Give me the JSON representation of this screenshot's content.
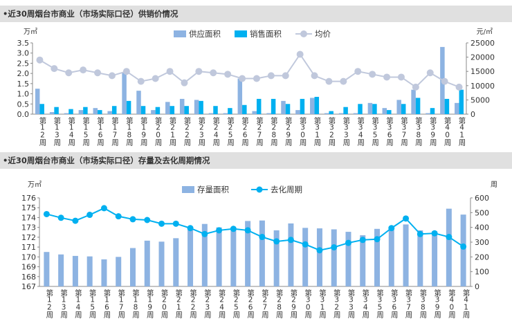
{
  "chart_data": [
    {
      "type": "bar",
      "title": "•近30周烟台市商业（市场实际口径）供销价情况",
      "y_unit_left": "万㎡",
      "y_unit_right": "元/㎡",
      "ylim": [
        0,
        3.5
      ],
      "yticks": [
        "0.0",
        "0.5",
        "1.0",
        "1.5",
        "2.0",
        "2.5",
        "3.0",
        "3.5"
      ],
      "y2lim": [
        0,
        25000
      ],
      "y2ticks": [
        "0",
        "5000",
        "10000",
        "15000",
        "20000",
        "25000"
      ],
      "legend_position": "top-center",
      "categories": [
        "第12周",
        "第13周",
        "第14周",
        "第15周",
        "第16周",
        "第17周",
        "第18周",
        "第19周",
        "第20周",
        "第21周",
        "第22周",
        "第23周",
        "第24周",
        "第25周",
        "第26周",
        "第27周",
        "第28周",
        "第29周",
        "第30周",
        "第31周",
        "第32周",
        "第33周",
        "第34周",
        "第35周",
        "第36周",
        "第37周",
        "第38周",
        "第39周",
        "第40周",
        "第41周"
      ],
      "series": [
        {
          "name": "供应面积",
          "kind": "bar",
          "color": "#8db3e2",
          "values": [
            1.25,
            0.1,
            0.05,
            0.2,
            0.3,
            0.15,
            2.05,
            1.15,
            0.2,
            0.6,
            0.75,
            0.7,
            0.05,
            0.05,
            1.75,
            0.15,
            0.05,
            0.65,
            0.2,
            0.8,
            0.05,
            0.05,
            0.05,
            0.55,
            0.3,
            0.7,
            1.2,
            0.05,
            3.3,
            0.55
          ]
        },
        {
          "name": "销售面积",
          "kind": "bar",
          "color": "#00b0f0",
          "values": [
            0.5,
            0.35,
            0.25,
            0.35,
            0.2,
            0.4,
            0.65,
            0.4,
            0.35,
            0.4,
            0.4,
            0.65,
            0.4,
            0.3,
            0.45,
            0.75,
            0.75,
            0.5,
            0.75,
            0.85,
            0.15,
            0.35,
            0.5,
            0.5,
            0.2,
            0.5,
            0.8,
            0.3,
            0.75,
            1.2
          ]
        },
        {
          "name": "均价",
          "kind": "line",
          "axis": "right",
          "color": "#c0c8dc",
          "values": [
            19000,
            16000,
            14500,
            15500,
            14500,
            13500,
            15000,
            11500,
            12500,
            15000,
            11000,
            15000,
            14500,
            14000,
            12500,
            12500,
            13500,
            13500,
            21000,
            13500,
            11500,
            11500,
            15000,
            14000,
            13000,
            13000,
            9500,
            14500,
            11500,
            9500
          ]
        }
      ]
    },
    {
      "type": "bar",
      "title": "•近30周烟台市商业（市场实际口径）存量及去化周期情况",
      "y_unit_left": "万㎡",
      "y_unit_right": "周",
      "ylim": [
        167,
        176
      ],
      "yticks": [
        "167",
        "168",
        "169",
        "170",
        "171",
        "172",
        "173",
        "174",
        "175",
        "176"
      ],
      "y2lim": [
        0,
        600
      ],
      "y2ticks": [
        "0",
        "100",
        "200",
        "300",
        "400",
        "500",
        "600"
      ],
      "legend_position": "top-center",
      "categories": [
        "第12周",
        "第13周",
        "第14周",
        "第15周",
        "第16周",
        "第17周",
        "第18周",
        "第19周",
        "第20周",
        "第21周",
        "第22周",
        "第23周",
        "第24周",
        "第25周",
        "第26周",
        "第27周",
        "第28周",
        "第29周",
        "第30周",
        "第31周",
        "第32周",
        "第33周",
        "第34周",
        "第35周",
        "第36周",
        "第37周",
        "第38周",
        "第39周",
        "第40周",
        "第41周"
      ],
      "series": [
        {
          "name": "存量面积",
          "kind": "bar",
          "color": "#8db3e2",
          "values": [
            170.5,
            170.25,
            170.1,
            170.05,
            169.75,
            170.0,
            170.9,
            171.65,
            171.55,
            171.9,
            172.9,
            173.35,
            173.0,
            173.0,
            173.65,
            173.7,
            172.7,
            173.4,
            172.95,
            172.9,
            172.8,
            172.55,
            172.2,
            172.85,
            172.95,
            173.3,
            172.7,
            172.6,
            174.9,
            174.3
          ]
        },
        {
          "name": "去化周期",
          "kind": "line",
          "axis": "right",
          "color": "#00b0f0",
          "values": [
            490,
            465,
            445,
            485,
            530,
            475,
            455,
            450,
            425,
            425,
            395,
            355,
            380,
            390,
            380,
            335,
            305,
            315,
            285,
            245,
            265,
            295,
            315,
            320,
            395,
            460,
            355,
            360,
            335,
            270
          ]
        }
      ]
    }
  ]
}
